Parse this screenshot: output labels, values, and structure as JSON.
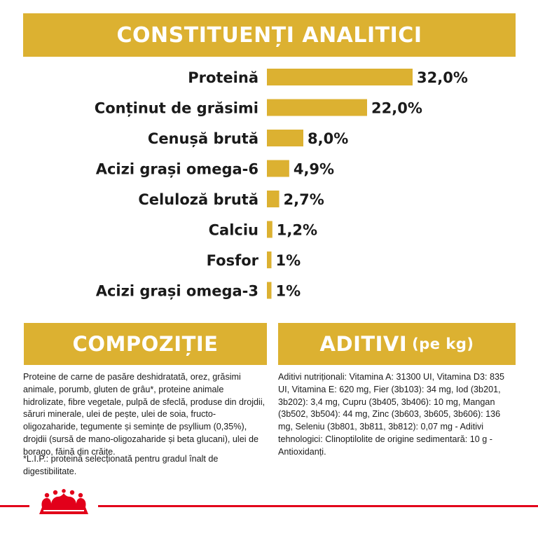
{
  "header": {
    "title": "CONSTITUENȚI ANALITICI"
  },
  "chart_data": {
    "type": "bar",
    "orientation": "horizontal",
    "categories": [
      "Proteină",
      "Conținut de grăsimi",
      "Cenușă brută",
      "Acizi grași omega-6",
      "Celuloză brută",
      "Calciu",
      "Fosfor",
      "Acizi grași omega-3"
    ],
    "values": [
      32.0,
      22.0,
      8.0,
      4.9,
      2.7,
      1.2,
      1.0,
      1.0
    ],
    "value_labels": [
      "32,0%",
      "22,0%",
      "8,0%",
      "4,9%",
      "2,7%",
      "1,2%",
      "1%",
      "1%"
    ],
    "bar_color": "#dcb131",
    "xlim": [
      0,
      32
    ],
    "grid": false
  },
  "composition": {
    "title": "COMPOZIȚIE",
    "text": "Proteine de carne de pasăre deshidratată, orez, grăsimi animale, porumb, gluten de grâu*, proteine animale hidrolizate, fibre vegetale, pulpă de sfeclă, produse din drojdii, săruri minerale, ulei de pește, ulei de soia, fructo-oligozaharide, tegumente și semințe de psyllium (0,35%), drojdii (sursă de mano-oligozaharide și beta glucani), ulei de borago, făină din crăițe.",
    "note": "*L.I.P.: proteină selecționată pentru gradul înalt de digestibilitate."
  },
  "additives": {
    "title": "ADITIVI",
    "title_suffix": "(pe kg)",
    "text": "Aditivi nutriționali: Vitamina A: 31300 UI, Vitamina D3: 835 UI, Vitamina E: 620 mg, Fier (3b103): 34 mg, Iod (3b201, 3b202): 3,4 mg, Cupru (3b405, 3b406): 10 mg, Mangan (3b502, 3b504): 44 mg, Zinc (3b603, 3b605, 3b606): 136 mg, Seleniu (3b801, 3b811, 3b812): 0,07 mg - Aditivi tehnologici: Clinoptilolite de origine sedimentară: 10 g - Antioxidanți."
  },
  "brand": {
    "accent": "#dcb131",
    "footer_color": "#e2001a",
    "logo_icon": "crown-icon"
  }
}
